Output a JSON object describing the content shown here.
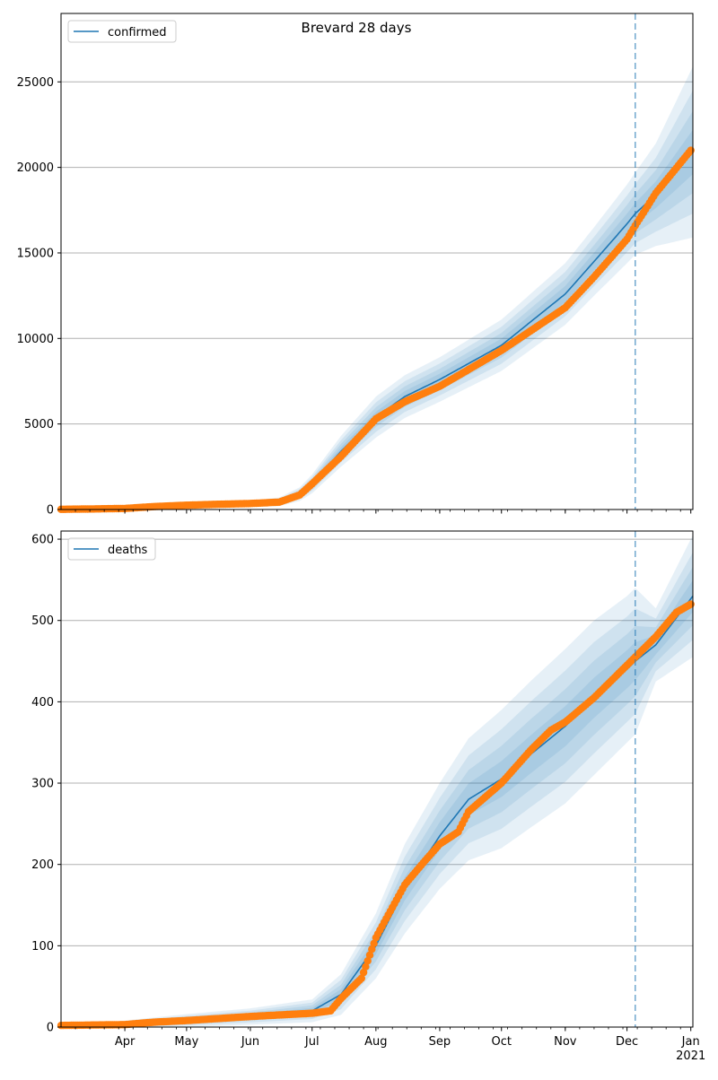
{
  "figure": {
    "title": "Brevard 28 days"
  },
  "colors": {
    "model": "#1f77b4",
    "observed": "#ff7f0e",
    "band": "#1f77b4",
    "grid": "#b0b0b0",
    "vline": "#1f77b4"
  },
  "x_axis": {
    "month_ticks": [
      {
        "date": "2020-04-01",
        "label": "Apr"
      },
      {
        "date": "2020-05-01",
        "label": "May"
      },
      {
        "date": "2020-06-01",
        "label": "Jun"
      },
      {
        "date": "2020-07-01",
        "label": "Jul"
      },
      {
        "date": "2020-08-01",
        "label": "Aug"
      },
      {
        "date": "2020-09-01",
        "label": "Sep"
      },
      {
        "date": "2020-10-01",
        "label": "Oct"
      },
      {
        "date": "2020-11-01",
        "label": "Nov"
      },
      {
        "date": "2020-12-01",
        "label": "Dec"
      },
      {
        "date": "2021-01-01",
        "label": "Jan"
      }
    ],
    "year_label": "2021"
  },
  "chart_data": [
    {
      "type": "line",
      "series_name": "confirmed",
      "legend_position": "top-left",
      "grid": "y-major",
      "xlim": [
        "2020-03-01",
        "2021-01-02"
      ],
      "ylim": [
        0,
        29000
      ],
      "yticks": [
        0,
        5000,
        10000,
        15000,
        20000,
        25000
      ],
      "forecast_start": "2020-12-05",
      "model_points": [
        [
          "2020-03-01",
          0
        ],
        [
          "2020-04-01",
          40
        ],
        [
          "2020-05-01",
          180
        ],
        [
          "2020-06-01",
          330
        ],
        [
          "2020-06-15",
          450
        ],
        [
          "2020-06-25",
          900
        ],
        [
          "2020-07-01",
          1500
        ],
        [
          "2020-07-15",
          3400
        ],
        [
          "2020-08-01",
          5400
        ],
        [
          "2020-08-15",
          6600
        ],
        [
          "2020-09-01",
          7600
        ],
        [
          "2020-10-01",
          9600
        ],
        [
          "2020-11-01",
          12600
        ],
        [
          "2020-11-15",
          14500
        ],
        [
          "2020-12-01",
          16700
        ],
        [
          "2020-12-05",
          17300
        ],
        [
          "2020-12-15",
          18400
        ],
        [
          "2021-01-02",
          20900
        ]
      ],
      "band_outer_width": [
        [
          0,
          0
        ],
        [
          31,
          60
        ],
        [
          61,
          120
        ],
        [
          92,
          180
        ],
        [
          106,
          250
        ],
        [
          116,
          400
        ],
        [
          122,
          550
        ],
        [
          136,
          900
        ],
        [
          153,
          1200
        ],
        [
          167,
          1250
        ],
        [
          184,
          1300
        ],
        [
          214,
          1500
        ],
        [
          245,
          1800
        ],
        [
          259,
          2000
        ],
        [
          275,
          2300
        ],
        [
          279,
          2400
        ],
        [
          289,
          3000
        ],
        [
          307,
          5000
        ]
      ],
      "observed_points": [
        [
          "2020-03-01",
          10
        ],
        [
          "2020-03-15",
          30
        ],
        [
          "2020-04-01",
          60
        ],
        [
          "2020-04-15",
          170
        ],
        [
          "2020-05-01",
          250
        ],
        [
          "2020-05-15",
          300
        ],
        [
          "2020-06-01",
          350
        ],
        [
          "2020-06-15",
          430
        ],
        [
          "2020-06-25",
          850
        ],
        [
          "2020-07-01",
          1500
        ],
        [
          "2020-07-15",
          3100
        ],
        [
          "2020-08-01",
          5300
        ],
        [
          "2020-08-15",
          6300
        ],
        [
          "2020-09-01",
          7200
        ],
        [
          "2020-10-01",
          9300
        ],
        [
          "2020-11-01",
          11800
        ],
        [
          "2020-11-15",
          13600
        ],
        [
          "2020-12-01",
          15800
        ],
        [
          "2020-12-05",
          16600
        ],
        [
          "2020-12-15",
          18500
        ],
        [
          "2021-01-01",
          21000
        ]
      ]
    },
    {
      "type": "line",
      "series_name": "deaths",
      "legend_position": "top-left",
      "grid": "y-major",
      "xlim": [
        "2020-03-01",
        "2021-01-02"
      ],
      "ylim": [
        0,
        610
      ],
      "yticks": [
        0,
        100,
        200,
        300,
        400,
        500,
        600
      ],
      "forecast_start": "2020-12-05",
      "model_points": [
        [
          "2020-03-01",
          0
        ],
        [
          "2020-04-01",
          3
        ],
        [
          "2020-05-01",
          8
        ],
        [
          "2020-06-01",
          13
        ],
        [
          "2020-07-01",
          20
        ],
        [
          "2020-07-15",
          40
        ],
        [
          "2020-08-01",
          100
        ],
        [
          "2020-08-15",
          170
        ],
        [
          "2020-09-01",
          235
        ],
        [
          "2020-09-15",
          280
        ],
        [
          "2020-10-01",
          305
        ],
        [
          "2020-10-15",
          335
        ],
        [
          "2020-11-01",
          370
        ],
        [
          "2020-11-15",
          405
        ],
        [
          "2020-12-01",
          440
        ],
        [
          "2020-12-05",
          450
        ],
        [
          "2020-12-15",
          470
        ],
        [
          "2021-01-02",
          530
        ]
      ],
      "band_outer_width": [
        [
          0,
          0
        ],
        [
          31,
          5
        ],
        [
          61,
          8
        ],
        [
          92,
          10
        ],
        [
          122,
          14
        ],
        [
          136,
          25
        ],
        [
          153,
          40
        ],
        [
          167,
          55
        ],
        [
          184,
          65
        ],
        [
          198,
          75
        ],
        [
          214,
          85
        ],
        [
          228,
          90
        ],
        [
          245,
          95
        ],
        [
          259,
          95
        ],
        [
          275,
          90
        ],
        [
          279,
          90
        ],
        [
          289,
          45
        ],
        [
          307,
          75
        ]
      ],
      "observed_points": [
        [
          "2020-03-01",
          2
        ],
        [
          "2020-04-01",
          3
        ],
        [
          "2020-04-15",
          6
        ],
        [
          "2020-05-01",
          8
        ],
        [
          "2020-06-01",
          13
        ],
        [
          "2020-07-01",
          17
        ],
        [
          "2020-07-10",
          20
        ],
        [
          "2020-07-15",
          35
        ],
        [
          "2020-07-25",
          60
        ],
        [
          "2020-08-01",
          110
        ],
        [
          "2020-08-15",
          175
        ],
        [
          "2020-08-25",
          205
        ],
        [
          "2020-09-01",
          225
        ],
        [
          "2020-09-10",
          240
        ],
        [
          "2020-09-15",
          265
        ],
        [
          "2020-10-01",
          300
        ],
        [
          "2020-10-15",
          340
        ],
        [
          "2020-10-25",
          365
        ],
        [
          "2020-11-01",
          375
        ],
        [
          "2020-11-15",
          405
        ],
        [
          "2020-12-01",
          445
        ],
        [
          "2020-12-05",
          455
        ],
        [
          "2020-12-15",
          480
        ],
        [
          "2020-12-25",
          510
        ],
        [
          "2021-01-01",
          520
        ]
      ]
    }
  ]
}
